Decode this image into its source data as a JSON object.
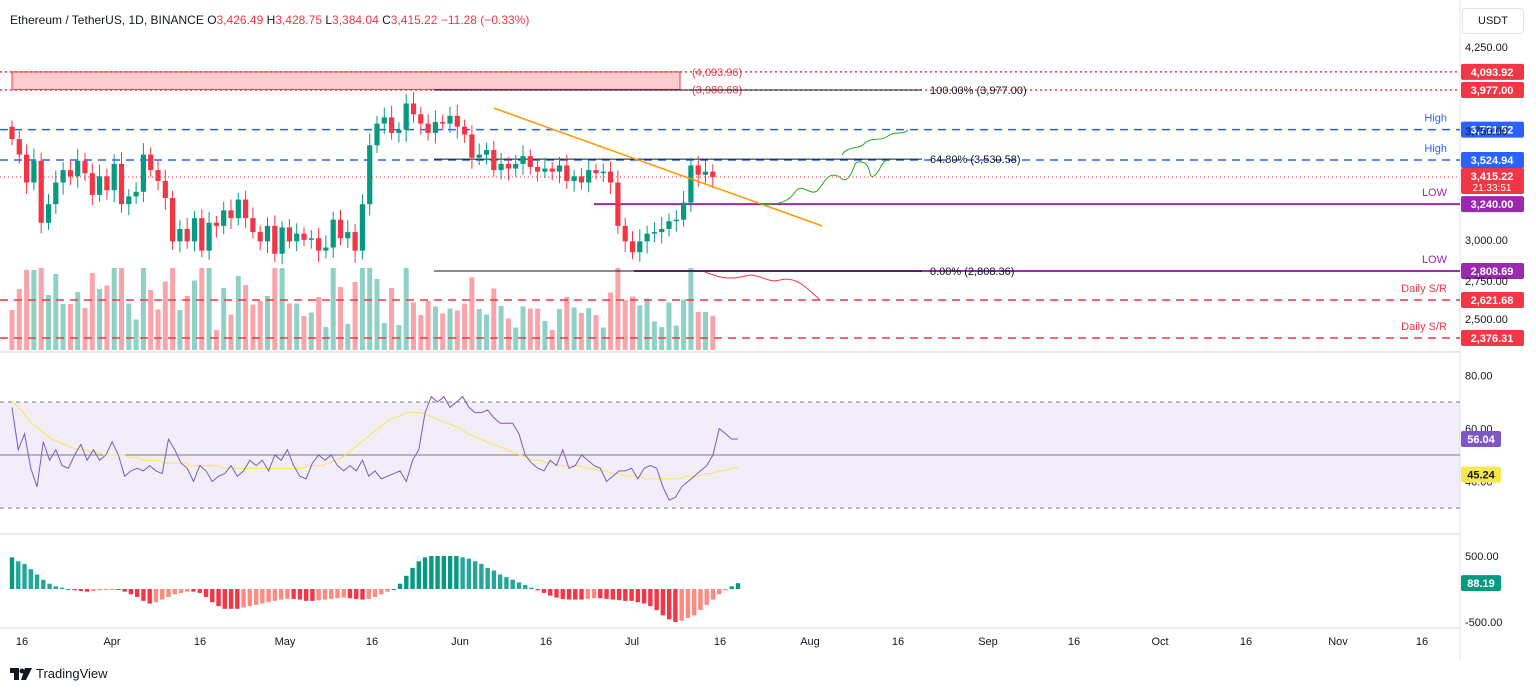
{
  "header": {
    "symbol": "Ethereum / TetherUS, 1D, BINANCE",
    "o_label": "O",
    "o_value": "3,426.49",
    "h_label": "H",
    "h_value": "3,428.75",
    "l_label": "L",
    "l_value": "3,384.04",
    "c_label": "C",
    "c_value": "3,415.22",
    "change": "−11.28 (−0.33%)"
  },
  "unit_button": "USDT",
  "brand": "TradingView",
  "colors": {
    "up": "#089981",
    "down": "#f23645",
    "trendline": "#ff9800",
    "blue": "#2962ff",
    "purple": "#9c27b0",
    "rsi": "#7e57c2",
    "rsi_ma": "#f7e74c"
  },
  "chart_data": {
    "type": "candlestick",
    "price_axis_ticks": [
      "4,250.00",
      "3,750.00",
      "3,000.00",
      "2,750.00",
      "2,500.00"
    ],
    "time_axis_ticks": [
      "16",
      "Apr",
      "16",
      "May",
      "16",
      "Jun",
      "16",
      "Jul",
      "16",
      "Aug",
      "16",
      "Sep",
      "16",
      "Oct",
      "16",
      "Nov",
      "16"
    ],
    "closes": [
      3660,
      3560,
      3380,
      3520,
      3120,
      3240,
      3380,
      3460,
      3420,
      3520,
      3440,
      3300,
      3420,
      3330,
      3500,
      3240,
      3290,
      3320,
      3560,
      3460,
      3390,
      3280,
      3000,
      3080,
      3000,
      3150,
      2940,
      3120,
      3100,
      3200,
      3150,
      3270,
      3150,
      3060,
      3000,
      3100,
      2920,
      3090,
      3000,
      3050,
      3010,
      3020,
      2940,
      2960,
      3140,
      3020,
      3060,
      2940,
      3240,
      3620,
      3760,
      3800,
      3700,
      3720,
      3890,
      3820,
      3760,
      3700,
      3770,
      3760,
      3810,
      3740,
      3690,
      3540,
      3560,
      3590,
      3460,
      3500,
      3470,
      3500,
      3550,
      3480,
      3450,
      3470,
      3450,
      3490,
      3390,
      3420,
      3380,
      3460,
      3440,
      3450,
      3380,
      3100,
      3000,
      2930,
      3000,
      3050,
      3060,
      3080,
      3130,
      3140,
      3250,
      3490,
      3430,
      3450,
      3415
    ],
    "price_levels": [
      {
        "label": "4,093.92",
        "value": 4093.92,
        "style": "dotted",
        "color": "#f23645",
        "tag": ""
      },
      {
        "label": "3,977.00",
        "value": 3977.0,
        "style": "dotted",
        "color": "#f23645",
        "tag": ""
      },
      {
        "label": "3,721.52",
        "value": 3721.52,
        "style": "dashed",
        "color": "#2962ff",
        "tag": "High"
      },
      {
        "label": "3,524.94",
        "value": 3524.94,
        "style": "dashed",
        "color": "#2962ff",
        "tag": "High"
      },
      {
        "label": "3,240.00",
        "value": 3240.0,
        "style": "solid",
        "color": "#9c27b0",
        "tag": "LOW"
      },
      {
        "label": "2,808.69",
        "value": 2808.69,
        "style": "solid",
        "color": "#9c27b0",
        "tag": "LOW"
      },
      {
        "label": "2,621.68",
        "value": 2621.68,
        "style": "dashed",
        "color": "#f23645",
        "tag": "Daily S/R"
      },
      {
        "label": "2,376.31",
        "value": 2376.31,
        "style": "dashed",
        "color": "#f23645",
        "tag": "Daily S/R"
      }
    ],
    "last_price": {
      "label": "3,415.22",
      "value": 3415.22,
      "countdown": "21:33:51"
    },
    "supply_zone": {
      "top": 4093.96,
      "bottom": 3980.68,
      "top_label": "(4,093.96)",
      "bottom_label": "(3,980.68)"
    },
    "fibonacci": [
      {
        "label": "100.00% (3,977.00)",
        "value": 3977.0
      },
      {
        "label": "64.80% (3,530.58)",
        "value": 3530.58
      },
      {
        "label": "0.00% (2,808.36)",
        "value": 2808.36
      }
    ],
    "trendline": {
      "from": 3860,
      "to": 3100
    },
    "rsi": {
      "axis_ticks": [
        "80.00",
        "60.00",
        "40.00"
      ],
      "bands": [
        70,
        50,
        30
      ],
      "value": "56.04",
      "ma_value": "45.24",
      "values": [
        68,
        52,
        58,
        45,
        38,
        55,
        48,
        52,
        46,
        45,
        50,
        54,
        48,
        52,
        48,
        50,
        55,
        50,
        42,
        44,
        45,
        44,
        46,
        44,
        43,
        56,
        52,
        47,
        45,
        40,
        46,
        44,
        40,
        42,
        43,
        46,
        42,
        44,
        48,
        46,
        48,
        44,
        50,
        48,
        52,
        46,
        42,
        41,
        47,
        50,
        48,
        50,
        46,
        44,
        46,
        44,
        48,
        42,
        44,
        41,
        42,
        43,
        44,
        40,
        48,
        52,
        66,
        72,
        70,
        72,
        68,
        70,
        72,
        68,
        66,
        66,
        67,
        64,
        62,
        62,
        62,
        58,
        50,
        47,
        45,
        44,
        48,
        46,
        52,
        45,
        46,
        50,
        48,
        46,
        45,
        40,
        42,
        44,
        44,
        45,
        41,
        45,
        46,
        45,
        38,
        33,
        34,
        38,
        40,
        42,
        44,
        46,
        50,
        60,
        58,
        56,
        56.04
      ],
      "ma_values": [
        70,
        68,
        65,
        62,
        60,
        58,
        56,
        55,
        54,
        53,
        52,
        52,
        51,
        51,
        50,
        50,
        50,
        50,
        49,
        49,
        48,
        48,
        48,
        47,
        47,
        47,
        47,
        46,
        46,
        46,
        46,
        46,
        45,
        45,
        45,
        45,
        45,
        45,
        45,
        45,
        45,
        45,
        45,
        45,
        45,
        46,
        46,
        46,
        47,
        48,
        49,
        51,
        53,
        55,
        57,
        59,
        61,
        63,
        64,
        65,
        66,
        66,
        66,
        65,
        64,
        63,
        62,
        61,
        60,
        58,
        57,
        56,
        55,
        54,
        53,
        52,
        51,
        50,
        49,
        48,
        48,
        47,
        47,
        46,
        46,
        46,
        46,
        45,
        45,
        44,
        44,
        43,
        43,
        42,
        42,
        42,
        41,
        41,
        41,
        41,
        41,
        41,
        42,
        42,
        42,
        43,
        43,
        44,
        44,
        45,
        45.24
      ]
    },
    "macd": {
      "axis_ticks": [
        "500.00",
        "-500.00"
      ],
      "value": "88.19",
      "values": [
        480,
        420,
        380,
        300,
        220,
        140,
        80,
        40,
        20,
        0,
        -20,
        -30,
        -40,
        -30,
        -20,
        -10,
        -5,
        -10,
        -40,
        -80,
        -120,
        -180,
        -220,
        -200,
        -160,
        -120,
        -80,
        -60,
        -40,
        -40,
        -60,
        -120,
        -200,
        -260,
        -300,
        -300,
        -300,
        -280,
        -260,
        -240,
        -220,
        -200,
        -180,
        -160,
        -150,
        -150,
        -160,
        -180,
        -180,
        -170,
        -160,
        -150,
        -140,
        -130,
        -140,
        -150,
        -160,
        -150,
        -120,
        -80,
        -40,
        0,
        80,
        200,
        320,
        420,
        480,
        500,
        500,
        500,
        500,
        500,
        480,
        460,
        420,
        380,
        320,
        280,
        220,
        180,
        140,
        100,
        60,
        20,
        -20,
        -60,
        -100,
        -130,
        -150,
        -160,
        -160,
        -160,
        -150,
        -140,
        -140,
        -150,
        -160,
        -170,
        -180,
        -180,
        -200,
        -220,
        -260,
        -320,
        -400,
        -460,
        -500,
        -480,
        -440,
        -400,
        -320,
        -240,
        -160,
        -80,
        -20,
        40,
        88.19
      ]
    }
  }
}
